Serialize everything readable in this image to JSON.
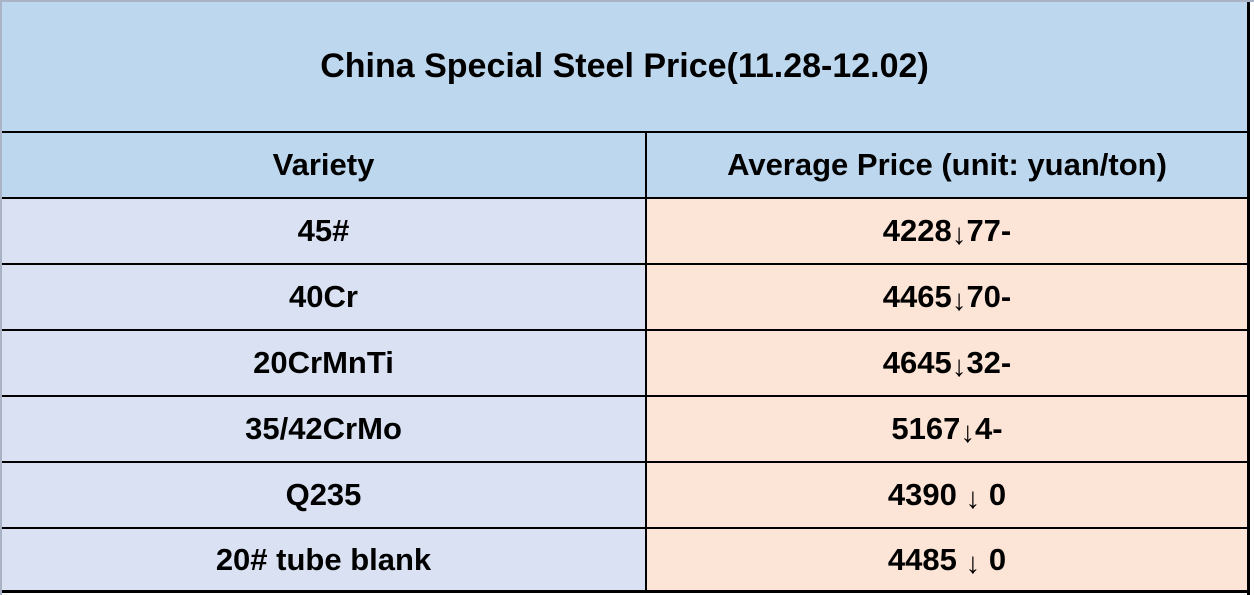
{
  "title": "China Special Steel Price(11.28-12.02)",
  "columns": {
    "variety": "Variety",
    "price": "Average Price (unit: yuan/ton)"
  },
  "rows": [
    {
      "variety": "45#",
      "price_value": "4228",
      "arrow": "↓",
      "price_change": "77-"
    },
    {
      "variety": "40Cr",
      "price_value": "4465",
      "arrow": "↓",
      "price_change": "70-"
    },
    {
      "variety": "20CrMnTi",
      "price_value": "4645",
      "arrow": "↓",
      "price_change": "32-"
    },
    {
      "variety": "35/42CrMo",
      "price_value": "5167",
      "arrow": "↓",
      "price_change": "4-"
    },
    {
      "variety": "Q235",
      "price_value": "4390 ",
      "arrow": "↓",
      "price_change": " 0"
    },
    {
      "variety": "20# tube blank",
      "price_value": "4485 ",
      "arrow": "↓",
      "price_change": " 0"
    }
  ],
  "arrow_meaning": "price-down",
  "colors": {
    "title_bg": "#bdd7ee",
    "header_bg": "#bdd7ee",
    "variety_bg": "#d9e1f2",
    "price_bg": "#fce4d6",
    "border": "#000000",
    "frame_edge": "#aab2c6"
  }
}
